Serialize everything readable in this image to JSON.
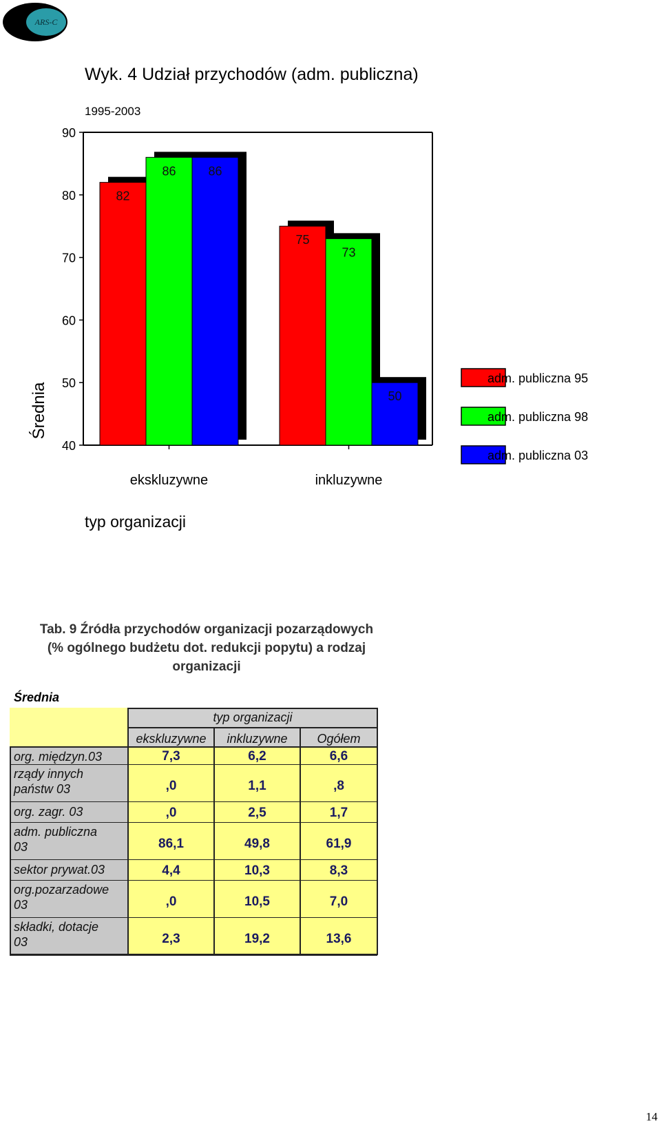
{
  "logo": {
    "text": "ARS-C"
  },
  "chart_data": {
    "type": "bar",
    "title": "Wyk. 4 Udział przychodów (adm. publiczna)",
    "subtitle": "1995-2003",
    "ylabel": "Średnia",
    "xlabel": "typ organizacji",
    "ylim": [
      40,
      90
    ],
    "yticks": [
      90,
      80,
      70,
      60,
      50,
      40
    ],
    "categories": [
      "ekskluzywne",
      "inkluzywne"
    ],
    "series": [
      {
        "name": "adm. publiczna 95",
        "color": "#ff0000",
        "values": [
          82,
          75
        ]
      },
      {
        "name": "adm. publiczna 98",
        "color": "#00ff00",
        "values": [
          86,
          73
        ]
      },
      {
        "name": "adm. publiczna 03",
        "color": "#0000ff",
        "values": [
          86,
          50
        ]
      }
    ],
    "legend": "right"
  },
  "table": {
    "caption_lines": [
      "Tab. 9 Źródła przychodów organizacji pozarządowych",
      "(% ogólnego budżetu dot. redukcji popytu) a rodzaj",
      "organizacji"
    ],
    "stat_label": "Średnia",
    "group_header": "typ organizacji",
    "columns": [
      "ekskluzywne",
      "inkluzywne",
      "Ogółem"
    ],
    "rows": [
      {
        "label_lines": [
          "org. międzyn.03"
        ],
        "values": [
          "7,3",
          "6,2",
          "6,6"
        ]
      },
      {
        "label_lines": [
          "rządy innych",
          "państw 03"
        ],
        "values": [
          ",0",
          "1,1",
          ",8"
        ]
      },
      {
        "label_lines": [
          "org. zagr. 03"
        ],
        "values": [
          ",0",
          "2,5",
          "1,7"
        ]
      },
      {
        "label_lines": [
          "adm. publiczna",
          "03"
        ],
        "values": [
          "86,1",
          "49,8",
          "61,9"
        ]
      },
      {
        "label_lines": [
          "sektor prywat.03"
        ],
        "values": [
          "4,4",
          "10,3",
          "8,3"
        ]
      },
      {
        "label_lines": [
          "org.pozarzadowe",
          "03"
        ],
        "values": [
          ",0",
          "10,5",
          "7,0"
        ]
      },
      {
        "label_lines": [
          "składki, dotacje",
          "03"
        ],
        "values": [
          "2,3",
          "19,2",
          "13,6"
        ]
      }
    ]
  },
  "page_number": "14"
}
